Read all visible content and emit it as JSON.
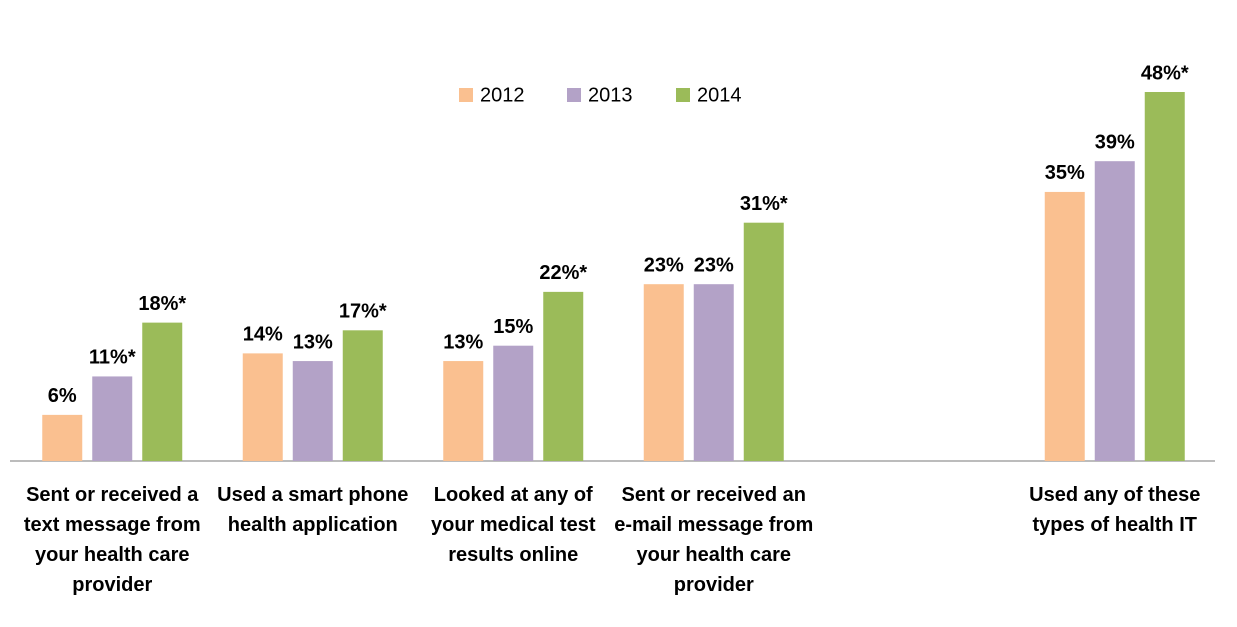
{
  "chart_data": {
    "type": "bar",
    "categories": [
      "Sent or received a text message from your health care provider",
      "Used a smart phone health application",
      "Looked at any of your medical test results online",
      "Sent or received an e-mail message from your health care provider",
      null,
      "Used any of these types of health IT"
    ],
    "series": [
      {
        "name": "2012",
        "color": "#fac090",
        "values": [
          6,
          14,
          13,
          23,
          null,
          35
        ],
        "value_labels": [
          "6%",
          "14%",
          "13%",
          "23%",
          null,
          "35%"
        ]
      },
      {
        "name": "2013",
        "color": "#b3a2c7",
        "values": [
          11,
          13,
          15,
          23,
          null,
          39
        ],
        "value_labels": [
          "11%*",
          "13%",
          "15%",
          "23%",
          null,
          "39%"
        ]
      },
      {
        "name": "2014",
        "color": "#9bbb59",
        "values": [
          18,
          17,
          22,
          31,
          null,
          48
        ],
        "value_labels": [
          "18%*",
          "17%*",
          "22%*",
          "31%*",
          null,
          "48%*"
        ]
      }
    ],
    "legend": "top"
  }
}
